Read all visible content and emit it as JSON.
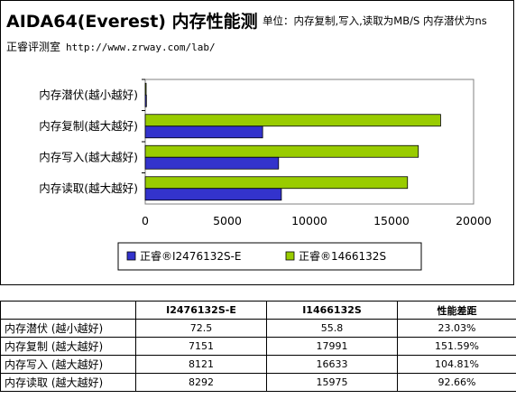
{
  "header": {
    "title": "AIDA64(Everest) 内存性能测",
    "subtitle": "单位：内存复制,写入,读取为MB/S 内存潜伏为ns",
    "source_label": "正睿评测室",
    "source_url": "http://www.zrway.com/lab/"
  },
  "chart_data": {
    "type": "bar",
    "orientation": "horizontal",
    "categories": [
      "内存潜伏(越小越好)",
      "内存复制(越大越好)",
      "内存写入(越大越好)",
      "内存读取(越大越好)"
    ],
    "series": [
      {
        "name": "正睿®I2476132S-E",
        "color": "#3333cc",
        "values": [
          72.5,
          7151,
          8121,
          8292
        ]
      },
      {
        "name": "正睿®1466132S",
        "color": "#99cc00",
        "values": [
          55.8,
          17991,
          16633,
          15975
        ]
      }
    ],
    "xlim": [
      0,
      20000
    ],
    "xticks": [
      "0",
      "5000",
      "10000",
      "15000",
      "20000"
    ],
    "grid": false,
    "legend": "bottom"
  },
  "table": {
    "headers": [
      "",
      "I2476132S-E",
      "I1466132S",
      "性能差距"
    ],
    "rows": [
      [
        "内存潜伏 (越小越好)",
        "72.5",
        "55.8",
        "23.03%"
      ],
      [
        "内存复制 (越大越好)",
        "7151",
        "17991",
        "151.59%"
      ],
      [
        "内存写入 (越大越好)",
        "8121",
        "16633",
        "104.81%"
      ],
      [
        "内存读取 (越大越好)",
        "8292",
        "15975",
        "92.66%"
      ]
    ]
  }
}
